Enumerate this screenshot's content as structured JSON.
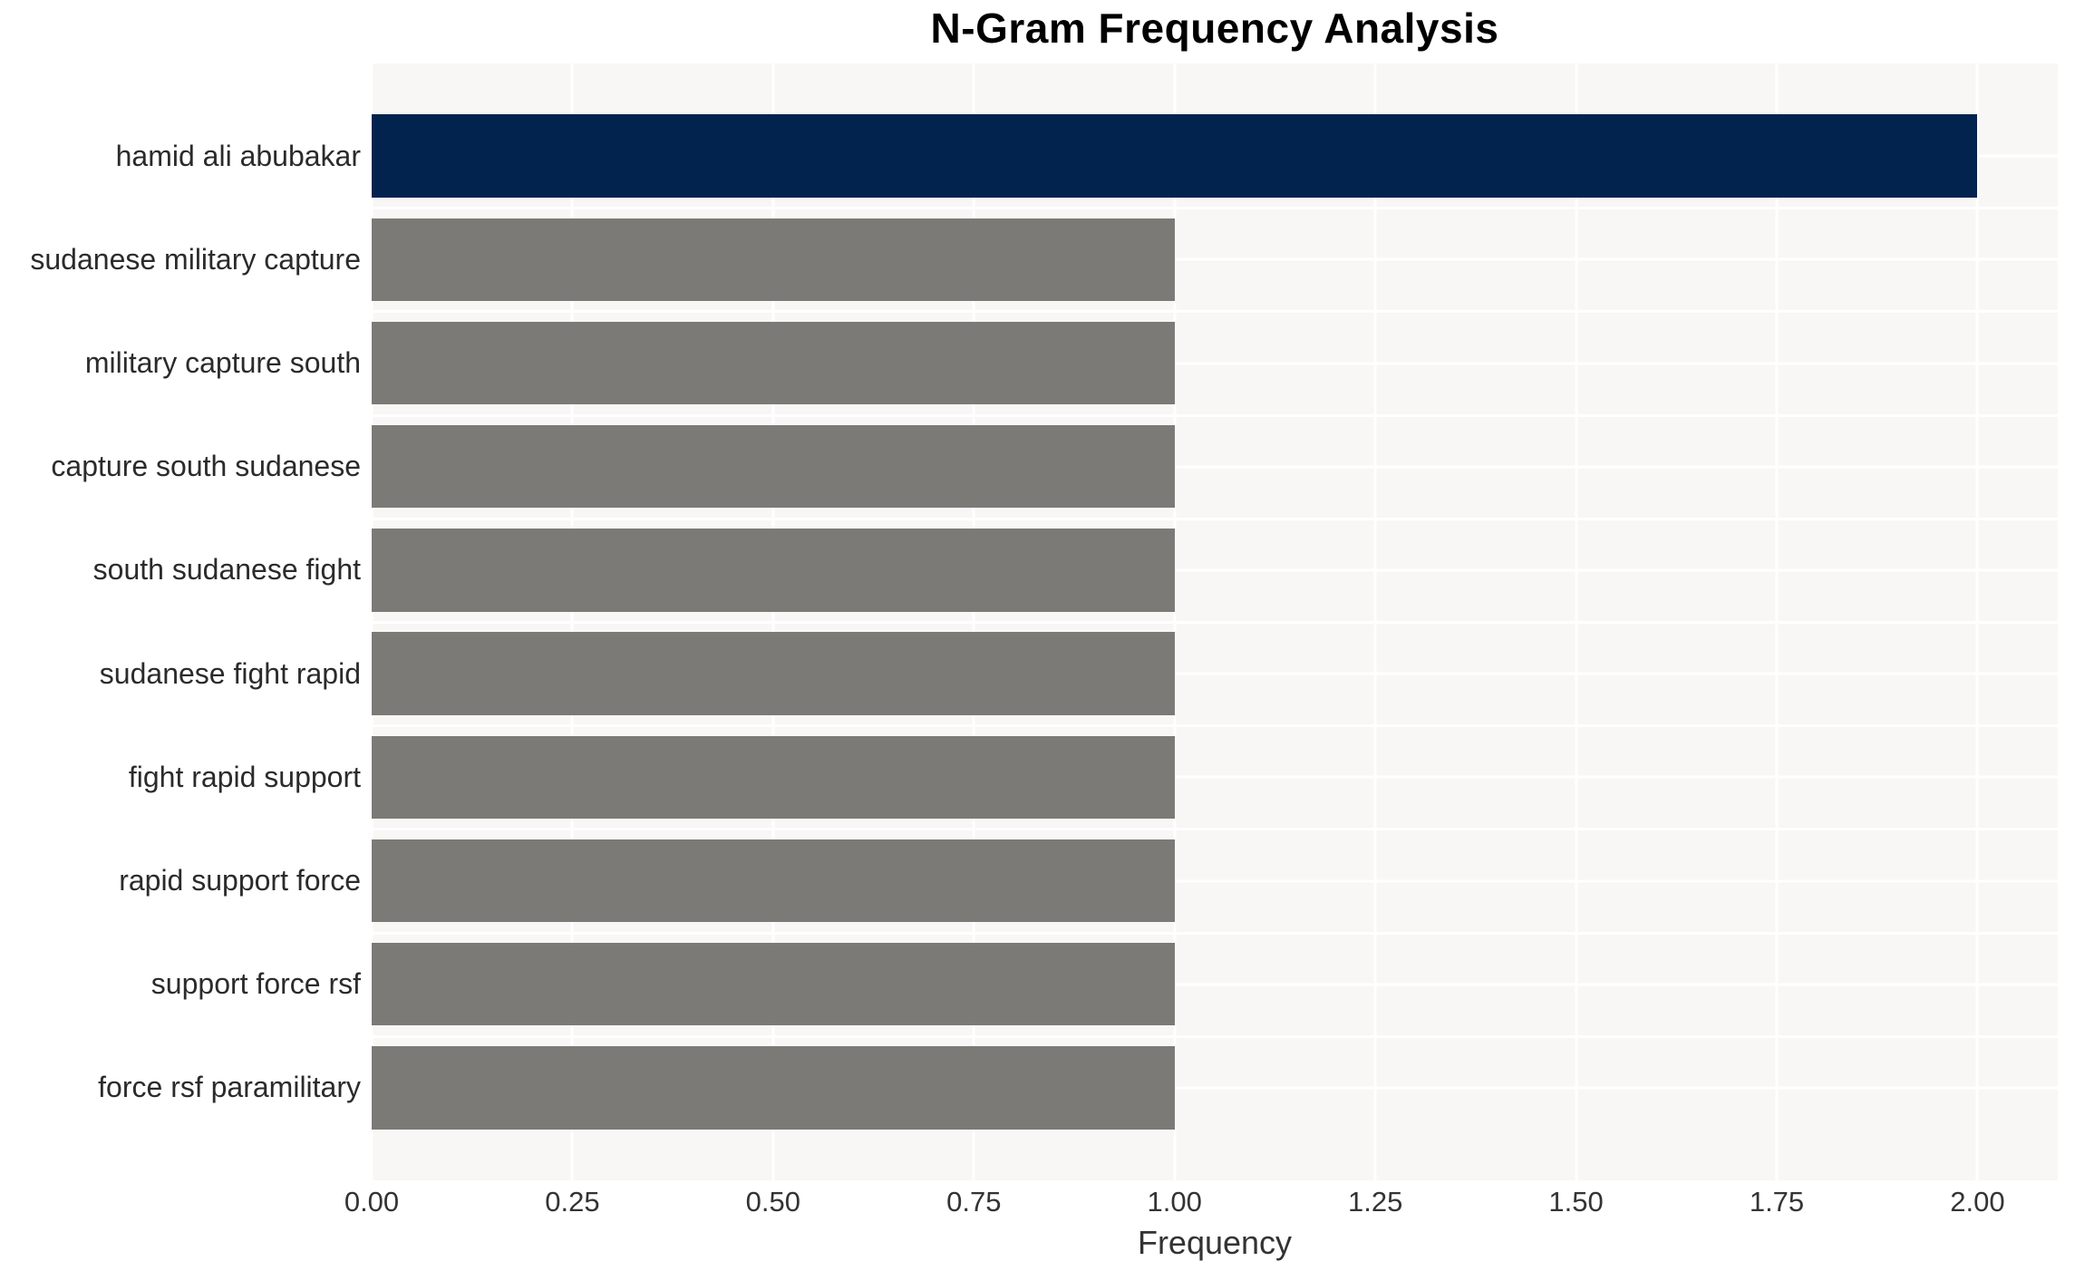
{
  "chart_data": {
    "type": "bar",
    "orientation": "horizontal",
    "title": "N-Gram Frequency Analysis",
    "xlabel": "Frequency",
    "ylabel": "",
    "categories": [
      "hamid ali abubakar",
      "sudanese military capture",
      "military capture south",
      "capture south sudanese",
      "south sudanese fight",
      "sudanese fight rapid",
      "fight rapid support",
      "rapid support force",
      "support force rsf",
      "force rsf paramilitary"
    ],
    "values": [
      2,
      1,
      1,
      1,
      1,
      1,
      1,
      1,
      1,
      1
    ],
    "bar_colors": [
      "#02234e",
      "#7b7a76",
      "#7b7a76",
      "#7b7a76",
      "#7b7a76",
      "#7b7a76",
      "#7b7a76",
      "#7b7a76",
      "#7b7a76",
      "#7b7a76"
    ],
    "xlim": [
      0,
      2.1
    ],
    "xticks": [
      0,
      0.25,
      0.5,
      0.75,
      1.0,
      1.25,
      1.5,
      1.75,
      2.0
    ],
    "xtick_labels": [
      "0.00",
      "0.25",
      "0.50",
      "0.75",
      "1.00",
      "1.25",
      "1.50",
      "1.75",
      "2.00"
    ],
    "grid": true,
    "legend": false
  },
  "style": {
    "panel_bg": "#f8f7f6",
    "grid_color": "#ffffff",
    "title_color": "#000000",
    "category_label_color": "#2b2b2b",
    "tick_label_color": "#333333",
    "axis_title_color": "#333333"
  }
}
